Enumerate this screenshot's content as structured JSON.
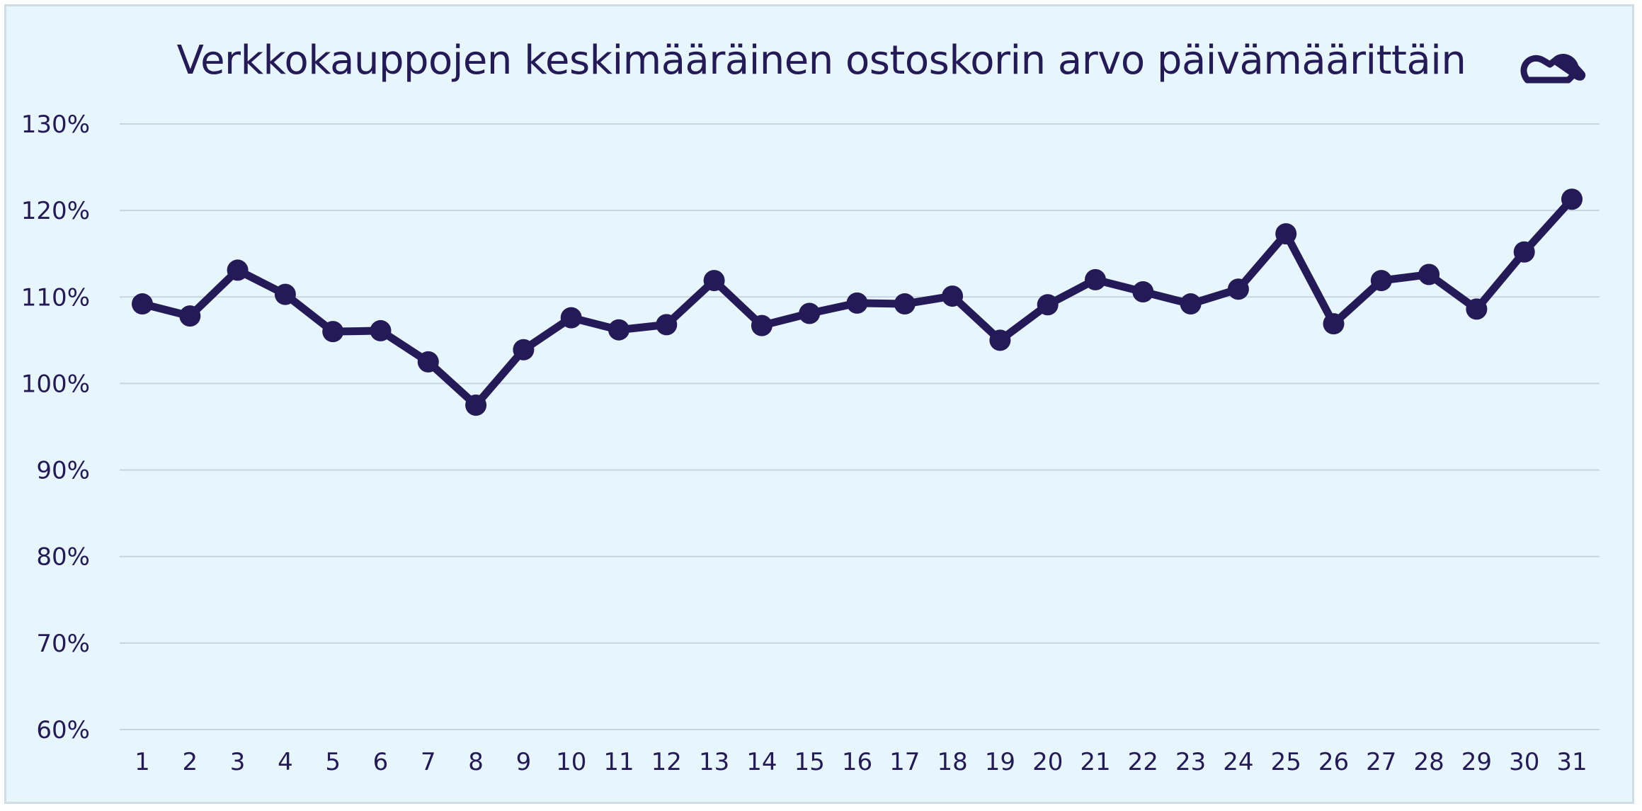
{
  "chart_data": {
    "type": "line",
    "title": "Verkkokauppojen keskimääräinen ostoskorin arvo päivämäärittäin",
    "xlabel": "",
    "ylabel": "",
    "x": [
      1,
      2,
      3,
      4,
      5,
      6,
      7,
      8,
      9,
      10,
      11,
      12,
      13,
      14,
      15,
      16,
      17,
      18,
      19,
      20,
      21,
      22,
      23,
      24,
      25,
      26,
      27,
      28,
      29,
      30,
      31
    ],
    "categories": [
      "1",
      "2",
      "3",
      "4",
      "5",
      "6",
      "7",
      "8",
      "9",
      "10",
      "11",
      "12",
      "13",
      "14",
      "15",
      "16",
      "17",
      "18",
      "19",
      "20",
      "21",
      "22",
      "23",
      "24",
      "25",
      "26",
      "27",
      "28",
      "29",
      "30",
      "31"
    ],
    "series": [
      {
        "values": [
          109.2,
          107.8,
          113.1,
          110.3,
          106.0,
          106.1,
          102.5,
          97.5,
          103.9,
          107.6,
          106.2,
          106.8,
          111.9,
          106.7,
          108.1,
          109.3,
          109.2,
          110.1,
          105.0,
          109.1,
          112.0,
          110.6,
          109.2,
          110.9,
          117.3,
          106.9,
          111.9,
          112.6,
          108.6,
          115.2,
          121.3
        ]
      }
    ],
    "ylim": [
      60,
      130
    ],
    "yticks": [
      60,
      70,
      80,
      90,
      100,
      110,
      120,
      130
    ],
    "ytick_labels": [
      "60%",
      "70%",
      "80%",
      "90%",
      "100%",
      "110%",
      "120%",
      "130%"
    ],
    "grid": true,
    "legend": "none",
    "colors": {
      "line": "#241a57",
      "background": "#e7f5fd",
      "grid": "#c9d4df",
      "text": "#241a57"
    },
    "logo_icon": "brand-logo-icon"
  }
}
